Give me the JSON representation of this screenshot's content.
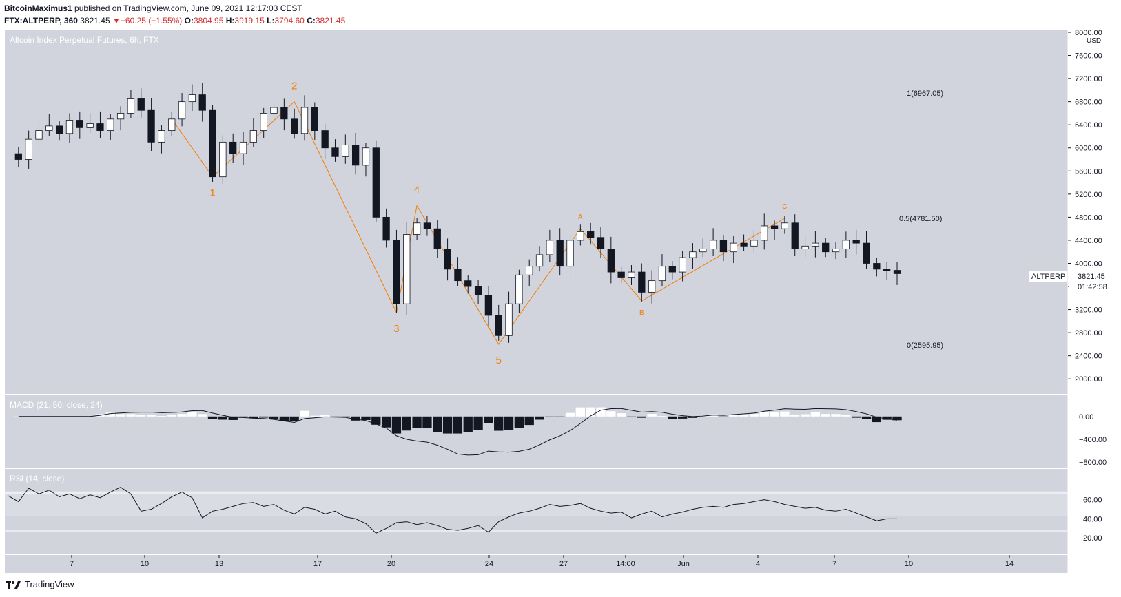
{
  "header": {
    "author": "BitcoinMaximus1",
    "published": "published on TradingView.com, June 09, 2021 12:17:03 CEST",
    "symbol": "FTX:ALTPERP, 360",
    "last": "3821.45",
    "change_arrow": "▼",
    "change": "−60.25 (−1.55%)",
    "o_label": "O:",
    "o": "3804.95",
    "h_label": "H:",
    "h": "3919.15",
    "l_label": "L:",
    "l": "3794.60",
    "c_label": "C:",
    "c": "3821.45"
  },
  "chart": {
    "title": "Altcoin Index Perpetual Futures, 6h, FTX",
    "currency": "USD",
    "price_ticks": [
      "8000.00",
      "7600.00",
      "7200.00",
      "6800.00",
      "6400.00",
      "6000.00",
      "5600.00",
      "5200.00",
      "4800.00",
      "4400.00",
      "4000.00",
      "3600.00",
      "3200.00",
      "2800.00",
      "2400.00",
      "2000.00"
    ],
    "macd_label": "MACD (21, 50, close, 24)",
    "macd_ticks": [
      "0.00",
      "−400.00",
      "−800.00"
    ],
    "rsi_label": "RSI (14, close)",
    "rsi_ticks": [
      "60.00",
      "40.00",
      "20.00"
    ],
    "time_ticks": [
      "7",
      "10",
      "13",
      "17",
      "20",
      "24",
      "27",
      "14:00",
      "Jun",
      "4",
      "7",
      "10",
      "14"
    ],
    "symbol_tag": "ALTPERP",
    "price_tag": "3821.45",
    "countdown": "01:42:58",
    "fib": [
      "1(6967.05)",
      "0.5(4781.50)",
      "0(2595.95)"
    ],
    "waves": [
      "1",
      "2",
      "3",
      "4",
      "5",
      "A",
      "B",
      "C"
    ],
    "colors": {
      "pane_bg": "#d1d4dc",
      "wave": "#f57c00",
      "bull": "#ffffff",
      "bear": "#131722",
      "rsi_band": "#dadce3"
    }
  },
  "chart_data": {
    "type": "candlestick",
    "title": "Altcoin Index Perpetual Futures, 6h, FTX",
    "ylabel": "USD",
    "ylim": [
      1800,
      8000
    ],
    "x_ticks": [
      "7",
      "10",
      "13",
      "17",
      "20",
      "24",
      "27",
      "14:00",
      "Jun",
      "4",
      "7",
      "10",
      "14"
    ],
    "fib_levels": [
      {
        "ratio": 1,
        "value": 6967.05
      },
      {
        "ratio": 0.5,
        "value": 4781.5
      },
      {
        "ratio": 0,
        "value": 2595.95
      }
    ],
    "wave_points": [
      {
        "label": "1",
        "value": 5500
      },
      {
        "label": "2",
        "value": 6800
      },
      {
        "label": "3",
        "value": 3150
      },
      {
        "label": "4",
        "value": 5000
      },
      {
        "label": "5",
        "value": 2600
      },
      {
        "label": "A",
        "value": 4600
      },
      {
        "label": "B",
        "value": 3350
      },
      {
        "label": "C",
        "value": 4780
      }
    ],
    "price_path": [
      5900,
      5800,
      6150,
      6300,
      6380,
      6250,
      6480,
      6350,
      6420,
      6300,
      6500,
      6600,
      6850,
      6650,
      6100,
      6300,
      6500,
      6800,
      6920,
      6650,
      5500,
      6100,
      5900,
      6100,
      6300,
      6600,
      6700,
      6500,
      6250,
      6700,
      6300,
      6000,
      5850,
      6050,
      5700,
      6000,
      4800,
      4400,
      3300,
      4500,
      4700,
      4600,
      4250,
      3900,
      3700,
      3600,
      3450,
      3100,
      2750,
      3300,
      3800,
      3950,
      4150,
      4400,
      3950,
      4400,
      4550,
      4450,
      4250,
      3850,
      3750,
      3850,
      3500,
      3700,
      3950,
      3850,
      4100,
      4200,
      4250,
      4400,
      4200,
      4350,
      4300,
      4400,
      4650,
      4600,
      4700,
      4250,
      4300,
      4350,
      4200,
      4250,
      4400,
      4350,
      4000,
      3900,
      3880,
      3821.45
    ],
    "macd": {
      "name": "MACD (21, 50, close, 24)",
      "ylim": [
        -850,
        300
      ]
    },
    "rsi": {
      "name": "RSI (14, close)",
      "levels": [
        30,
        50,
        70
      ],
      "values": [
        64,
        58,
        72,
        66,
        70,
        63,
        66,
        61,
        65,
        62,
        68,
        73,
        66,
        48,
        50,
        56,
        63,
        68,
        62,
        41,
        48,
        50,
        53,
        56,
        57,
        53,
        55,
        49,
        45,
        52,
        50,
        45,
        48,
        42,
        40,
        35,
        25,
        30,
        36,
        37,
        34,
        36,
        33,
        29,
        28,
        30,
        33,
        26,
        37,
        42,
        46,
        48,
        51,
        55,
        53,
        54,
        56,
        51,
        48,
        46,
        47,
        41,
        45,
        48,
        42,
        45,
        47,
        50,
        52,
        53,
        52,
        55,
        56,
        58,
        60,
        58,
        55,
        53,
        51,
        52,
        49,
        48,
        50,
        46,
        42,
        38,
        40,
        40
      ]
    }
  }
}
